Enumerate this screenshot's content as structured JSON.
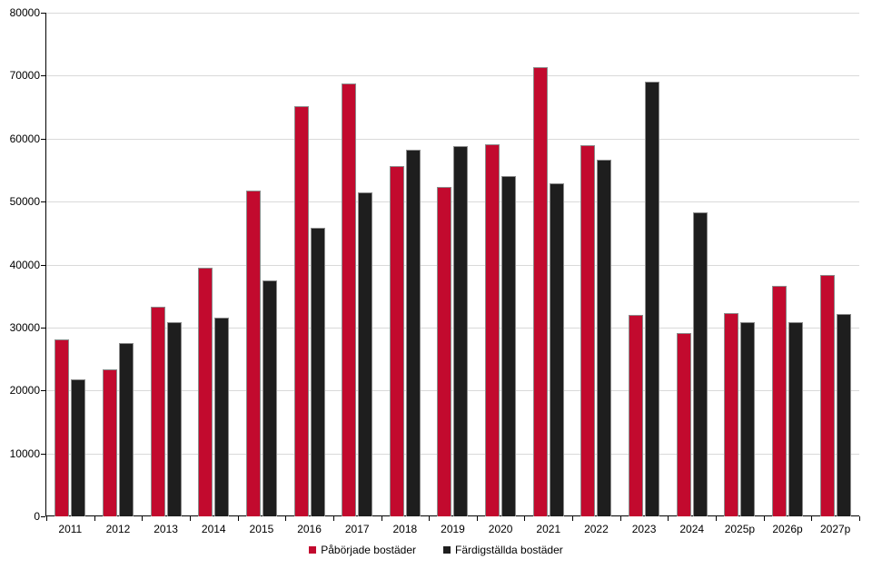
{
  "chart_data": {
    "type": "bar",
    "title": "",
    "xlabel": "",
    "ylabel": "",
    "categories": [
      "2011",
      "2012",
      "2013",
      "2014",
      "2015",
      "2016",
      "2017",
      "2018",
      "2019",
      "2020",
      "2021",
      "2022",
      "2023",
      "2024",
      "2025p",
      "2026p",
      "2027p"
    ],
    "series": [
      {
        "name": "Påbörjade bostäder",
        "color": "#C20A2E",
        "values": [
          28100,
          23300,
          33300,
          39500,
          51700,
          65100,
          68800,
          55600,
          52300,
          59100,
          71300,
          58900,
          32000,
          29100,
          32300,
          36600,
          38300
        ]
      },
      {
        "name": "Färdigställda bostäder",
        "color": "#1E1E1E",
        "values": [
          21700,
          27600,
          30800,
          31500,
          37500,
          45800,
          51500,
          58300,
          58800,
          54100,
          52900,
          56600,
          69000,
          48300,
          30800,
          30800,
          32200
        ]
      }
    ],
    "ylim": [
      0,
      80000
    ],
    "ytick_interval": 10000,
    "ytick_labels": [
      "0",
      "10000",
      "20000",
      "30000",
      "40000",
      "50000",
      "60000",
      "70000",
      "80000"
    ],
    "grid": true,
    "legend_position": "bottom"
  },
  "colors": {
    "background": "#FFFFFF",
    "grid": "#D9D9D9",
    "axis": "#000000",
    "bar_border": "#8C8C8C",
    "text": "#000000"
  }
}
